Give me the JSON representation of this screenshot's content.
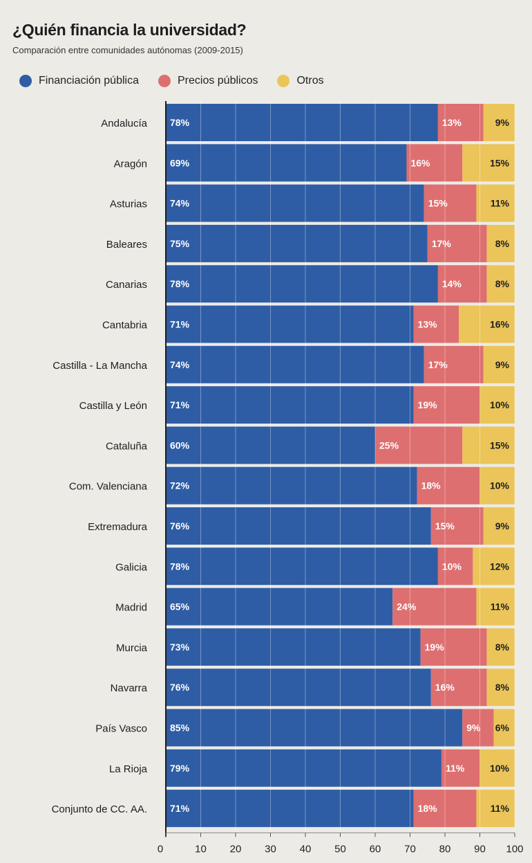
{
  "chart_data": {
    "type": "bar",
    "orientation": "horizontal",
    "stacked": true,
    "title": "¿Quién financia la universidad?",
    "subtitle": "Comparación entre comunidades autónomas (2009-2015)",
    "categories": [
      "Andalucía",
      "Aragón",
      "Asturias",
      "Baleares",
      "Canarias",
      "Cantabria",
      "Castilla - La Mancha",
      "Castilla y León",
      "Cataluña",
      "Com. Valenciana",
      "Extremadura",
      "Galicia",
      "Madrid",
      "Murcia",
      "Navarra",
      "País Vasco",
      "La Rioja",
      "Conjunto de CC. AA."
    ],
    "series": [
      {
        "name": "Financiación pública",
        "color": "#2f5da5",
        "values": [
          78,
          69,
          74,
          75,
          78,
          71,
          74,
          71,
          60,
          72,
          76,
          78,
          65,
          73,
          76,
          85,
          79,
          71
        ]
      },
      {
        "name": "Precios públicos",
        "color": "#de6f70",
        "values": [
          13,
          16,
          15,
          17,
          14,
          13,
          17,
          19,
          25,
          18,
          15,
          10,
          24,
          19,
          16,
          9,
          11,
          18
        ]
      },
      {
        "name": "Otros",
        "color": "#ebc55a",
        "values": [
          9,
          15,
          11,
          8,
          8,
          16,
          9,
          10,
          15,
          10,
          9,
          12,
          11,
          8,
          8,
          6,
          10,
          11
        ]
      }
    ],
    "xticks": [
      0,
      10,
      20,
      30,
      40,
      50,
      60,
      70,
      80,
      90,
      100
    ],
    "xlim": [
      0,
      100
    ],
    "grid": true,
    "legend": "top-left",
    "value_suffix": "%"
  }
}
